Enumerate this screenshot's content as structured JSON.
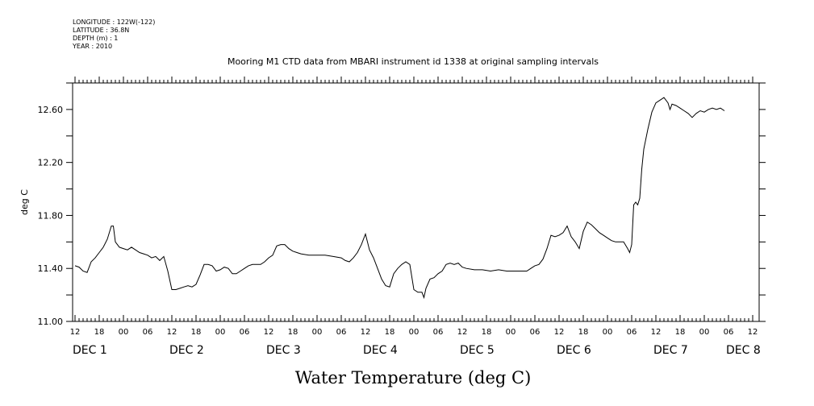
{
  "header": {
    "meta_lines": [
      "LONGITUDE : 122W(-122)",
      "LATITUDE : 36.8N",
      "DEPTH (m) : 1",
      "YEAR : 2010"
    ],
    "title": "Mooring M1 CTD data from MBARI instrument id 1338 at original sampling intervals"
  },
  "chart_data": {
    "type": "line",
    "title": "Mooring M1 CTD data from MBARI instrument id 1338 at original sampling intervals",
    "xlabel": "Water Temperature (deg C)",
    "ylabel": "deg C",
    "ylim": [
      11.0,
      12.8
    ],
    "yticks": [
      11.0,
      11.4,
      11.8,
      12.2,
      12.6
    ],
    "ytick_labels": [
      "11.00",
      "11.40",
      "11.80",
      "12.20",
      "12.60"
    ],
    "xlim_hours": [
      0,
      168
    ],
    "xtick_labels": [
      "12",
      "18",
      "00",
      "06",
      "12",
      "18",
      "00",
      "06",
      "12",
      "18",
      "00",
      "06",
      "12",
      "18",
      "00",
      "06",
      "12",
      "18",
      "00",
      "06",
      "12",
      "18",
      "00",
      "06",
      "12",
      "18",
      "00",
      "06",
      "12"
    ],
    "day_labels": [
      {
        "label": "DEC  1",
        "hour": 0
      },
      {
        "label": "DEC  2",
        "hour": 24
      },
      {
        "label": "DEC  3",
        "hour": 48
      },
      {
        "label": "DEC  4",
        "hour": 72
      },
      {
        "label": "DEC  5",
        "hour": 96
      },
      {
        "label": "DEC  6",
        "hour": 120
      },
      {
        "label": "DEC  7",
        "hour": 144
      },
      {
        "label": "DEC  8",
        "hour": 162
      }
    ],
    "series": [
      {
        "points": [
          [
            0,
            11.42
          ],
          [
            1,
            11.41
          ],
          [
            2,
            11.38
          ],
          [
            3,
            11.37
          ],
          [
            4,
            11.45
          ],
          [
            5,
            11.48
          ],
          [
            6,
            11.52
          ],
          [
            7,
            11.56
          ],
          [
            8,
            11.62
          ],
          [
            9,
            11.72
          ],
          [
            9.5,
            11.72
          ],
          [
            10,
            11.6
          ],
          [
            11,
            11.56
          ],
          [
            12,
            11.55
          ],
          [
            13,
            11.54
          ],
          [
            14,
            11.56
          ],
          [
            15,
            11.54
          ],
          [
            16,
            11.52
          ],
          [
            17,
            11.51
          ],
          [
            18,
            11.5
          ],
          [
            19,
            11.48
          ],
          [
            20,
            11.49
          ],
          [
            21,
            11.46
          ],
          [
            22,
            11.49
          ],
          [
            23,
            11.38
          ],
          [
            24,
            11.24
          ],
          [
            25,
            11.24
          ],
          [
            26,
            11.25
          ],
          [
            27,
            11.26
          ],
          [
            28,
            11.27
          ],
          [
            29,
            11.26
          ],
          [
            30,
            11.28
          ],
          [
            31,
            11.35
          ],
          [
            32,
            11.43
          ],
          [
            33,
            11.43
          ],
          [
            34,
            11.42
          ],
          [
            35,
            11.38
          ],
          [
            36,
            11.39
          ],
          [
            37,
            11.41
          ],
          [
            38,
            11.4
          ],
          [
            39,
            11.36
          ],
          [
            40,
            11.36
          ],
          [
            41,
            11.38
          ],
          [
            42,
            11.4
          ],
          [
            43,
            11.42
          ],
          [
            44,
            11.43
          ],
          [
            45,
            11.43
          ],
          [
            46,
            11.43
          ],
          [
            47,
            11.45
          ],
          [
            48,
            11.48
          ],
          [
            49,
            11.5
          ],
          [
            50,
            11.57
          ],
          [
            51,
            11.58
          ],
          [
            52,
            11.58
          ],
          [
            53,
            11.55
          ],
          [
            54,
            11.53
          ],
          [
            55,
            11.52
          ],
          [
            56,
            11.51
          ],
          [
            58,
            11.5
          ],
          [
            60,
            11.5
          ],
          [
            62,
            11.5
          ],
          [
            64,
            11.49
          ],
          [
            66,
            11.48
          ],
          [
            67,
            11.46
          ],
          [
            68,
            11.45
          ],
          [
            69,
            11.48
          ],
          [
            70,
            11.52
          ],
          [
            71,
            11.58
          ],
          [
            72,
            11.66
          ],
          [
            73,
            11.54
          ],
          [
            74,
            11.48
          ],
          [
            75,
            11.4
          ],
          [
            76,
            11.32
          ],
          [
            77,
            11.27
          ],
          [
            78,
            11.26
          ],
          [
            79,
            11.36
          ],
          [
            80,
            11.4
          ],
          [
            81,
            11.43
          ],
          [
            82,
            11.45
          ],
          [
            83,
            11.43
          ],
          [
            84,
            11.24
          ],
          [
            85,
            11.22
          ],
          [
            86,
            11.22
          ],
          [
            86.5,
            11.18
          ],
          [
            87,
            11.25
          ],
          [
            88,
            11.32
          ],
          [
            89,
            11.33
          ],
          [
            90,
            11.36
          ],
          [
            91,
            11.38
          ],
          [
            92,
            11.43
          ],
          [
            93,
            11.44
          ],
          [
            94,
            11.43
          ],
          [
            95,
            11.44
          ],
          [
            96,
            11.41
          ],
          [
            97,
            11.4
          ],
          [
            99,
            11.39
          ],
          [
            101,
            11.39
          ],
          [
            103,
            11.38
          ],
          [
            105,
            11.39
          ],
          [
            107,
            11.38
          ],
          [
            109,
            11.38
          ],
          [
            111,
            11.38
          ],
          [
            112,
            11.38
          ],
          [
            113,
            11.4
          ],
          [
            114,
            11.42
          ],
          [
            115,
            11.43
          ],
          [
            116,
            11.47
          ],
          [
            117,
            11.55
          ],
          [
            118,
            11.65
          ],
          [
            119,
            11.64
          ],
          [
            120,
            11.65
          ],
          [
            121,
            11.67
          ],
          [
            122,
            11.72
          ],
          [
            123,
            11.64
          ],
          [
            124,
            11.6
          ],
          [
            125,
            11.55
          ],
          [
            126,
            11.68
          ],
          [
            127,
            11.75
          ],
          [
            128,
            11.73
          ],
          [
            129,
            11.7
          ],
          [
            130,
            11.67
          ],
          [
            131,
            11.65
          ],
          [
            132,
            11.63
          ],
          [
            133,
            11.61
          ],
          [
            134,
            11.6
          ],
          [
            135,
            11.6
          ],
          [
            136,
            11.6
          ],
          [
            137,
            11.55
          ],
          [
            137.5,
            11.52
          ],
          [
            138,
            11.58
          ],
          [
            138.5,
            11.88
          ],
          [
            139,
            11.9
          ],
          [
            139.5,
            11.88
          ],
          [
            140,
            11.93
          ],
          [
            140.5,
            12.15
          ],
          [
            141,
            12.3
          ],
          [
            142,
            12.45
          ],
          [
            143,
            12.58
          ],
          [
            144,
            12.65
          ],
          [
            145,
            12.67
          ],
          [
            146,
            12.69
          ],
          [
            147,
            12.65
          ],
          [
            147.5,
            12.6
          ],
          [
            148,
            12.64
          ],
          [
            149,
            12.63
          ],
          [
            150,
            12.61
          ],
          [
            151,
            12.59
          ],
          [
            152,
            12.57
          ],
          [
            153,
            12.54
          ],
          [
            154,
            12.57
          ],
          [
            155,
            12.59
          ],
          [
            156,
            12.58
          ],
          [
            157,
            12.6
          ],
          [
            158,
            12.61
          ],
          [
            159,
            12.6
          ],
          [
            160,
            12.61
          ],
          [
            161,
            12.59
          ]
        ]
      }
    ]
  }
}
